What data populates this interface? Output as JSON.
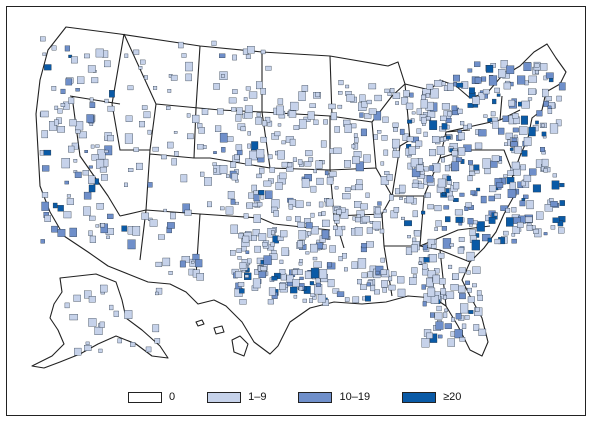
{
  "colors": {
    "zero": "#ffffff",
    "low": "#c6d2ea",
    "mid": "#6f8fca",
    "high": "#0a5aa6",
    "border": "#222222"
  },
  "legend": [
    {
      "label": "0",
      "level": "zero"
    },
    {
      "label": "1–9",
      "level": "low"
    },
    {
      "label": "10–19",
      "level": "mid"
    },
    {
      "label": "≥20",
      "level": "high"
    }
  ]
}
